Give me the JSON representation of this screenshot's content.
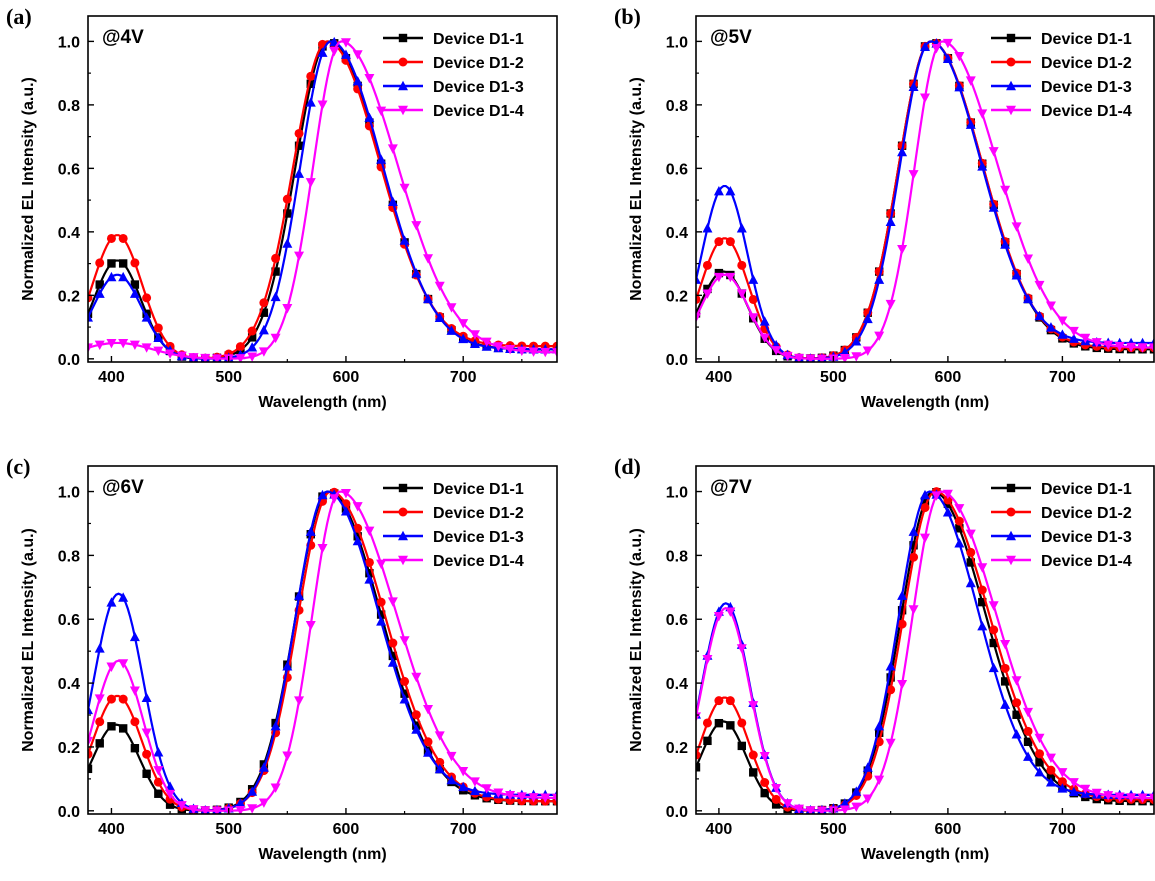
{
  "chart_data": [
    {
      "type": "line",
      "panel": "(a)",
      "annotation": "@4V",
      "xlabel": "Wavelength (nm)",
      "ylabel": "Normalized EL Intensity (a.u.)",
      "xlim": [
        380,
        780
      ],
      "ylim": [
        -0.01,
        1.08
      ],
      "xticks": [
        400,
        500,
        600,
        700
      ],
      "yticks": [
        0.0,
        0.2,
        0.4,
        0.6,
        0.8,
        1.0
      ],
      "legend_position": "top-right",
      "series": [
        {
          "name": "Device D1-1",
          "color": "#000000",
          "marker": "square",
          "blue": {
            "amp": 0.31,
            "center": 405,
            "sigma": 20
          },
          "orange": {
            "center": 585,
            "sigma_left": 28,
            "sigma_right": 45,
            "tail": 0.03
          }
        },
        {
          "name": "Device D1-2",
          "color": "#ff0000",
          "marker": "circle",
          "blue": {
            "amp": 0.39,
            "center": 405,
            "sigma": 21
          },
          "orange": {
            "center": 584,
            "sigma_left": 29,
            "sigma_right": 45,
            "tail": 0.04
          }
        },
        {
          "name": "Device D1-3",
          "color": "#0000ff",
          "marker": "triangle-up",
          "blue": {
            "amp": 0.265,
            "center": 405,
            "sigma": 21
          },
          "orange": {
            "center": 587,
            "sigma_left": 26,
            "sigma_right": 44,
            "tail": 0.03
          }
        },
        {
          "name": "Device D1-4",
          "color": "#ff00ff",
          "marker": "triangle-down",
          "blue": {
            "amp": 0.05,
            "center": 405,
            "sigma": 30
          },
          "orange": {
            "center": 596,
            "sigma_left": 24,
            "sigma_right": 48,
            "tail": 0.02
          }
        }
      ]
    },
    {
      "type": "line",
      "panel": "(b)",
      "annotation": "@5V",
      "xlabel": "Wavelength (nm)",
      "ylabel": "Normalized EL Intensity (a.u.)",
      "xlim": [
        380,
        780
      ],
      "ylim": [
        -0.01,
        1.08
      ],
      "xticks": [
        400,
        500,
        600,
        700
      ],
      "yticks": [
        0.0,
        0.2,
        0.4,
        0.6,
        0.8,
        1.0
      ],
      "legend_position": "top-right",
      "series": [
        {
          "name": "Device D1-1",
          "color": "#000000",
          "marker": "square",
          "blue": {
            "amp": 0.275,
            "center": 404,
            "sigma": 21
          },
          "orange": {
            "center": 585,
            "sigma_left": 28,
            "sigma_right": 45,
            "tail": 0.03
          }
        },
        {
          "name": "Device D1-2",
          "color": "#ff0000",
          "marker": "circle",
          "blue": {
            "amp": 0.38,
            "center": 405,
            "sigma": 21
          },
          "orange": {
            "center": 585,
            "sigma_left": 28,
            "sigma_right": 45,
            "tail": 0.035
          }
        },
        {
          "name": "Device D1-3",
          "color": "#0000ff",
          "marker": "triangle-up",
          "blue": {
            "amp": 0.545,
            "center": 405,
            "sigma": 20
          },
          "orange": {
            "center": 585,
            "sigma_left": 27,
            "sigma_right": 44,
            "tail": 0.05
          }
        },
        {
          "name": "Device D1-4",
          "color": "#ff00ff",
          "marker": "triangle-down",
          "blue": {
            "amp": 0.265,
            "center": 405,
            "sigma": 21
          },
          "orange": {
            "center": 595,
            "sigma_left": 24,
            "sigma_right": 48,
            "tail": 0.035
          }
        }
      ]
    },
    {
      "type": "line",
      "panel": "(c)",
      "annotation": "@6V",
      "xlabel": "Wavelength (nm)",
      "ylabel": "Normalized EL Intensity (a.u.)",
      "xlim": [
        380,
        780
      ],
      "ylim": [
        -0.01,
        1.08
      ],
      "xticks": [
        400,
        500,
        600,
        700
      ],
      "yticks": [
        0.0,
        0.2,
        0.4,
        0.6,
        0.8,
        1.0
      ],
      "legend_position": "top-right",
      "series": [
        {
          "name": "Device D1-1",
          "color": "#000000",
          "marker": "square",
          "blue": {
            "amp": 0.27,
            "center": 404,
            "sigma": 20
          },
          "orange": {
            "center": 585,
            "sigma_left": 28,
            "sigma_right": 45,
            "tail": 0.03
          }
        },
        {
          "name": "Device D1-2",
          "color": "#ff0000",
          "marker": "circle",
          "blue": {
            "amp": 0.36,
            "center": 405,
            "sigma": 21
          },
          "orange": {
            "center": 587,
            "sigma_left": 28,
            "sigma_right": 46,
            "tail": 0.03
          }
        },
        {
          "name": "Device D1-3",
          "color": "#0000ff",
          "marker": "triangle-up",
          "blue": {
            "amp": 0.68,
            "center": 406,
            "sigma": 21
          },
          "orange": {
            "center": 584,
            "sigma_left": 27,
            "sigma_right": 44,
            "tail": 0.05
          }
        },
        {
          "name": "Device D1-4",
          "color": "#ff00ff",
          "marker": "triangle-down",
          "blue": {
            "amp": 0.47,
            "center": 406,
            "sigma": 21
          },
          "orange": {
            "center": 595,
            "sigma_left": 24,
            "sigma_right": 48,
            "tail": 0.04
          }
        }
      ]
    },
    {
      "type": "line",
      "panel": "(d)",
      "annotation": "@7V",
      "xlabel": "Wavelength (nm)",
      "ylabel": "Normalized EL Intensity (a.u.)",
      "xlim": [
        380,
        780
      ],
      "ylim": [
        -0.01,
        1.08
      ],
      "xticks": [
        400,
        500,
        600,
        700
      ],
      "yticks": [
        0.0,
        0.2,
        0.4,
        0.6,
        0.8,
        1.0
      ],
      "legend_position": "top-right",
      "series": [
        {
          "name": "Device D1-1",
          "color": "#000000",
          "marker": "square",
          "blue": {
            "amp": 0.28,
            "center": 404,
            "sigma": 20
          },
          "orange": {
            "center": 587,
            "sigma_left": 28,
            "sigma_right": 46,
            "tail": 0.03
          }
        },
        {
          "name": "Device D1-2",
          "color": "#ff0000",
          "marker": "circle",
          "blue": {
            "amp": 0.355,
            "center": 405,
            "sigma": 21
          },
          "orange": {
            "center": 589,
            "sigma_left": 28,
            "sigma_right": 47,
            "tail": 0.035
          }
        },
        {
          "name": "Device D1-3",
          "color": "#0000ff",
          "marker": "triangle-up",
          "blue": {
            "amp": 0.65,
            "center": 406,
            "sigma": 21
          },
          "orange": {
            "center": 584,
            "sigma_left": 27,
            "sigma_right": 43,
            "tail": 0.05
          }
        },
        {
          "name": "Device D1-4",
          "color": "#ff00ff",
          "marker": "triangle-down",
          "blue": {
            "amp": 0.635,
            "center": 406,
            "sigma": 21
          },
          "orange": {
            "center": 594,
            "sigma_left": 25,
            "sigma_right": 48,
            "tail": 0.04
          }
        }
      ]
    }
  ]
}
